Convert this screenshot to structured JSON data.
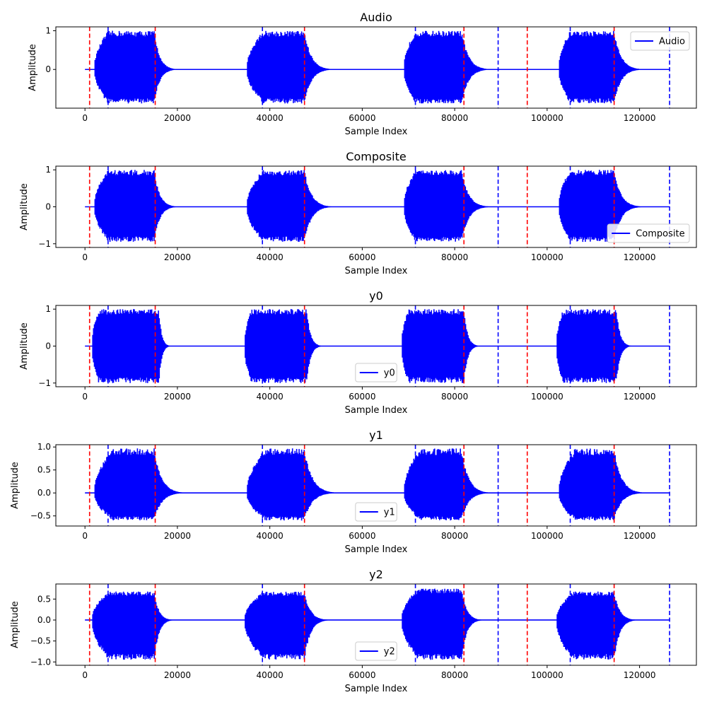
{
  "figure": {
    "x_tick_labels": [
      "0",
      "20000",
      "40000",
      "60000",
      "80000",
      "100000",
      "120000"
    ]
  },
  "chart_data": [
    {
      "type": "line",
      "title": "Audio",
      "xlabel": "Sample Index",
      "ylabel": "Amplitude",
      "legend": {
        "label": "Audio",
        "placement": "upper right"
      },
      "xlim": [
        -6300,
        132300
      ],
      "ylim": [
        -1.0,
        1.1
      ],
      "x_ticks": [
        0,
        20000,
        40000,
        60000,
        80000,
        100000,
        120000
      ],
      "y_ticks": [
        0,
        1
      ],
      "y_tick_labels": [
        "0",
        "1"
      ],
      "line_color": "#0000ff",
      "bursts": [
        {
          "start": 2000,
          "peak_start": 5000,
          "peak_end": 15000,
          "end": 21000,
          "amp_pos": 1.0,
          "amp_neg": -0.88
        },
        {
          "start": 35000,
          "peak_start": 38500,
          "peak_end": 47500,
          "end": 55000,
          "amp_pos": 1.0,
          "amp_neg": -0.88
        },
        {
          "start": 69000,
          "peak_start": 71500,
          "peak_end": 81500,
          "end": 89000,
          "amp_pos": 1.0,
          "amp_neg": -0.88
        },
        {
          "start": 102500,
          "peak_start": 105000,
          "peak_end": 114500,
          "end": 122000,
          "amp_pos": 1.0,
          "amp_neg": -0.88
        }
      ],
      "signal_end": 126500
    },
    {
      "type": "line",
      "title": "Composite",
      "xlabel": "Sample Index",
      "ylabel": "Amplitude",
      "legend": {
        "label": "Composite",
        "placement": "lower right"
      },
      "xlim": [
        -6300,
        132300
      ],
      "ylim": [
        -1.1,
        1.1
      ],
      "x_ticks": [
        0,
        20000,
        40000,
        60000,
        80000,
        100000,
        120000
      ],
      "y_ticks": [
        -1,
        0,
        1
      ],
      "y_tick_labels": [
        "−1",
        "0",
        "1"
      ],
      "line_color": "#0000ff",
      "bursts": [
        {
          "start": 2000,
          "peak_start": 5000,
          "peak_end": 15000,
          "end": 21000,
          "amp_pos": 1.0,
          "amp_neg": -0.95
        },
        {
          "start": 35000,
          "peak_start": 38500,
          "peak_end": 47500,
          "end": 55000,
          "amp_pos": 1.0,
          "amp_neg": -0.95
        },
        {
          "start": 69000,
          "peak_start": 71500,
          "peak_end": 81500,
          "end": 89000,
          "amp_pos": 1.0,
          "amp_neg": -0.95
        },
        {
          "start": 102500,
          "peak_start": 105000,
          "peak_end": 114500,
          "end": 122000,
          "amp_pos": 1.0,
          "amp_neg": -0.95
        }
      ],
      "signal_end": 126500
    },
    {
      "type": "line",
      "title": "y0",
      "xlabel": "Sample Index",
      "ylabel": "Amplitude",
      "legend": {
        "label": "y0",
        "placement": "lower center"
      },
      "xlim": [
        -6300,
        132300
      ],
      "ylim": [
        -1.1,
        1.1
      ],
      "x_ticks": [
        0,
        20000,
        40000,
        60000,
        80000,
        100000,
        120000
      ],
      "y_ticks": [
        -1,
        0,
        1
      ],
      "y_tick_labels": [
        "−1",
        "0",
        "1"
      ],
      "line_color": "#0000ff",
      "bursts": [
        {
          "start": 1500,
          "peak_start": 3000,
          "peak_end": 16000,
          "end": 19000,
          "amp_pos": 1.0,
          "amp_neg": -1.0
        },
        {
          "start": 34500,
          "peak_start": 36000,
          "peak_end": 48000,
          "end": 52000,
          "amp_pos": 1.0,
          "amp_neg": -1.0
        },
        {
          "start": 68500,
          "peak_start": 70000,
          "peak_end": 82000,
          "end": 86000,
          "amp_pos": 1.0,
          "amp_neg": -1.0
        },
        {
          "start": 102000,
          "peak_start": 103500,
          "peak_end": 115000,
          "end": 119000,
          "amp_pos": 1.0,
          "amp_neg": -1.0
        }
      ],
      "signal_end": 126500
    },
    {
      "type": "line",
      "title": "y1",
      "xlabel": "Sample Index",
      "ylabel": "Amplitude",
      "legend": {
        "label": "y1",
        "placement": "lower center"
      },
      "xlim": [
        -6300,
        132300
      ],
      "ylim": [
        -0.72,
        1.05
      ],
      "x_ticks": [
        0,
        20000,
        40000,
        60000,
        80000,
        100000,
        120000
      ],
      "y_ticks": [
        -0.5,
        0.0,
        0.5,
        1.0
      ],
      "y_tick_labels": [
        "−0.5",
        "0.0",
        "0.5",
        "1.0"
      ],
      "line_color": "#0000ff",
      "bursts": [
        {
          "start": 2000,
          "peak_start": 6000,
          "peak_end": 15000,
          "end": 23000,
          "amp_pos": 0.97,
          "amp_neg": -0.6
        },
        {
          "start": 35000,
          "peak_start": 39000,
          "peak_end": 47500,
          "end": 56000,
          "amp_pos": 0.97,
          "amp_neg": -0.6
        },
        {
          "start": 69000,
          "peak_start": 72500,
          "peak_end": 81500,
          "end": 89000,
          "amp_pos": 0.97,
          "amp_neg": -0.6
        },
        {
          "start": 102500,
          "peak_start": 106000,
          "peak_end": 114500,
          "end": 122500,
          "amp_pos": 0.97,
          "amp_neg": -0.6
        }
      ],
      "signal_end": 126500
    },
    {
      "type": "line",
      "title": "y2",
      "xlabel": "Sample Index",
      "ylabel": "Amplitude",
      "legend": {
        "label": "y2",
        "placement": "lower center"
      },
      "xlim": [
        -6300,
        132300
      ],
      "ylim": [
        -1.08,
        0.86
      ],
      "x_ticks": [
        0,
        20000,
        40000,
        60000,
        80000,
        100000,
        120000
      ],
      "y_ticks": [
        -1.0,
        -0.5,
        0.0,
        0.5
      ],
      "y_tick_labels": [
        "−1.0",
        "−0.5",
        "0.0",
        "0.5"
      ],
      "line_color": "#0000ff",
      "bursts": [
        {
          "start": 1500,
          "peak_start": 5000,
          "peak_end": 15000,
          "end": 20000,
          "amp_pos": 0.68,
          "amp_neg": -0.95
        },
        {
          "start": 34500,
          "peak_start": 38500,
          "peak_end": 47500,
          "end": 54000,
          "amp_pos": 0.68,
          "amp_neg": -0.95
        },
        {
          "start": 68500,
          "peak_start": 72000,
          "peak_end": 81500,
          "end": 87000,
          "amp_pos": 0.75,
          "amp_neg": -0.95
        },
        {
          "start": 102000,
          "peak_start": 105500,
          "peak_end": 114500,
          "end": 120500,
          "amp_pos": 0.68,
          "amp_neg": -0.95
        }
      ],
      "signal_end": 126500
    }
  ],
  "markers": {
    "red_dashed": [
      1000,
      15200,
      47500,
      82000,
      95700,
      114500
    ],
    "blue_dashed": [
      5000,
      38400,
      71500,
      89400,
      105000,
      126500
    ],
    "red_color": "#ff0000",
    "blue_color": "#0000ff"
  }
}
